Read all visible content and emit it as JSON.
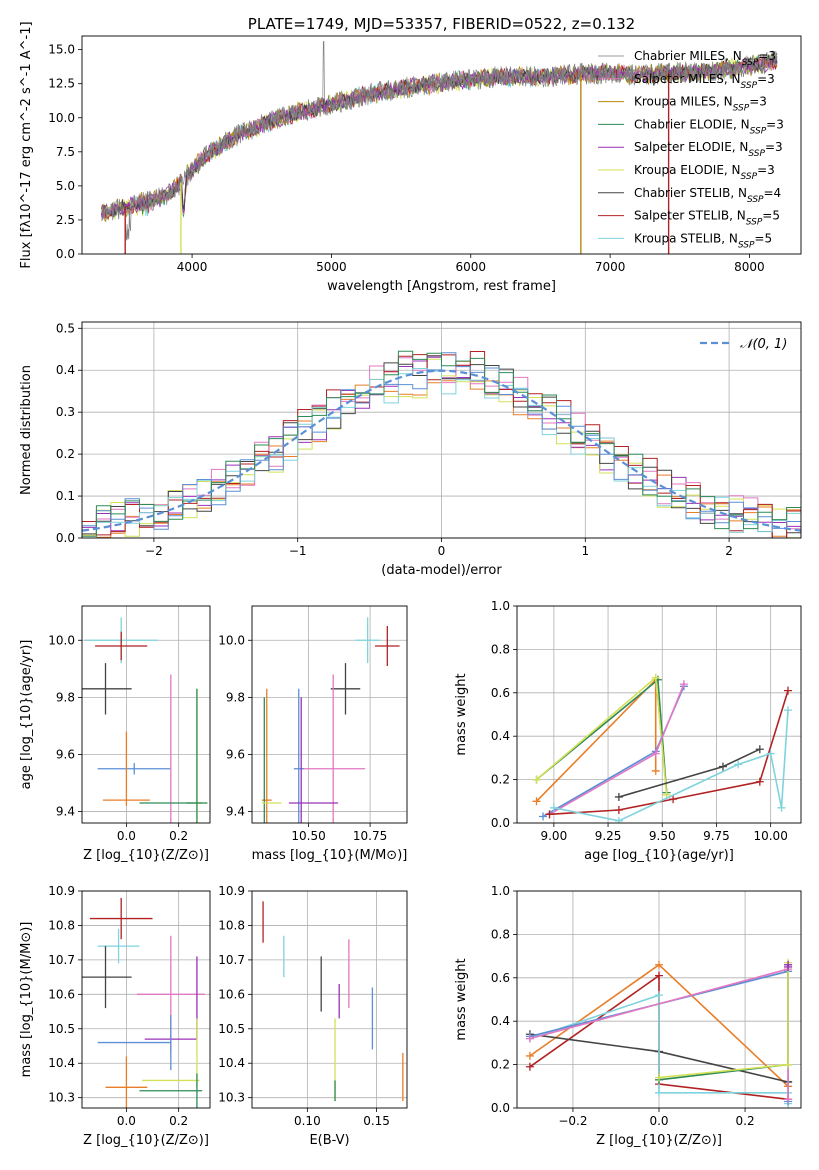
{
  "chart_data": [
    {
      "panel": "spectrum",
      "type": "line",
      "title": "PLATE=1749, MJD=53357, FIBERID=0522, z=0.132",
      "xlabel": "wavelength [Angstrom, rest frame]",
      "ylabel": "Flux [f$_{\\lambda}$10$^{-17}$ erg cm$^{-2}$ s$^{-1}$ A$^{-1}$]",
      "xlim": [
        3210,
        8370
      ],
      "ylim": [
        0,
        16
      ],
      "xticks": [
        4000,
        5000,
        6000,
        7000,
        8000
      ],
      "yticks": [
        0.0,
        2.5,
        5.0,
        7.5,
        10.0,
        12.5,
        15.0
      ],
      "legend_position": "upper right",
      "legend": [
        "Chabrier MILES, N_SSP=3",
        "Salpeter MILES, N_SSP=3",
        "Kroupa MILES, N_SSP=3",
        "Chabrier ELODIE, N_SSP=3",
        "Salpeter ELODIE, N_SSP=3",
        "Kroupa ELODIE, N_SSP=3",
        "Chabrier STELIB, N_SSP=4",
        "Salpeter STELIB, N_SSP=5",
        "Kroupa STELIB, N_SSP=5"
      ],
      "series_colors": [
        "#9b9b9b",
        "#e377c2",
        "#b8860b",
        "#2e8b57",
        "#9b30b8",
        "#d4e157",
        "#444444",
        "#b22222",
        "#7fd3dd"
      ],
      "continuum": {
        "x": [
          3350,
          3500,
          3600,
          3700,
          3800,
          3900,
          4000,
          4100,
          4300,
          4500,
          4700,
          5000,
          5300,
          5600,
          5900,
          6200,
          6500,
          6800,
          7000,
          7200,
          7400,
          7700,
          8000,
          8200
        ],
        "y": [
          3.0,
          3.4,
          3.6,
          3.9,
          4.2,
          5.0,
          6.2,
          7.2,
          8.6,
          9.5,
          10.2,
          11.0,
          11.8,
          12.3,
          12.7,
          13.0,
          13.0,
          13.2,
          13.3,
          13.1,
          13.3,
          13.4,
          13.8,
          14.2
        ]
      },
      "model_gaps": [
        {
          "x": 3520
        },
        {
          "x": 3920
        },
        {
          "x": 6790
        },
        {
          "x": 7420
        }
      ]
    },
    {
      "panel": "residuals",
      "type": "histogram",
      "xlabel": "(data-model)/error",
      "ylabel": "Normed distribution",
      "xlim": [
        -2.5,
        2.5
      ],
      "ylim": [
        0,
        0.515
      ],
      "xticks": [
        -2,
        -1,
        0,
        1,
        2
      ],
      "yticks": [
        0.0,
        0.1,
        0.2,
        0.3,
        0.4,
        0.5
      ],
      "grid": true,
      "legend_position": "upper right",
      "reference": {
        "name": "$\\mathcal{N}(0,1)$",
        "color": "#5b8fd6",
        "style": "dashed"
      },
      "series_colors": [
        "#e87e28",
        "#9b30b8",
        "#e377c2",
        "#d4e157",
        "#444444",
        "#b22222",
        "#7fd3dd",
        "#5b8fd6",
        "#2e8b57"
      ]
    },
    {
      "panel": "age-vs-Z",
      "type": "errorbar",
      "xlabel": "Z [log$_{10}$(Z/Z$_\\odot$)]",
      "ylabel": "age  [log$_{10}$(age/yr)]",
      "xlim": [
        -0.17,
        0.32
      ],
      "ylim": [
        9.36,
        10.12
      ],
      "xticks": [
        0.0,
        0.2
      ],
      "yticks": [
        9.4,
        9.6,
        9.8,
        10.0
      ],
      "grid": true,
      "points": [
        {
          "x": -0.02,
          "y": 10.0,
          "xerr": 0.14,
          "yerr": 0.08,
          "color": "#7fd3dd"
        },
        {
          "x": -0.02,
          "y": 9.98,
          "xerr": 0.1,
          "yerr": 0.05,
          "color": "#b22222"
        },
        {
          "x": -0.08,
          "y": 9.83,
          "xerr": 0.1,
          "yerr": 0.09,
          "color": "#444444"
        },
        {
          "x": 0.03,
          "y": 9.55,
          "xerr": 0.14,
          "yerr": 0.02,
          "color": "#5b8fd6"
        },
        {
          "x": 0.17,
          "y": 9.55,
          "xerr": 0.0,
          "yerr": 0.33,
          "color": "#e377c2"
        },
        {
          "x": 0.0,
          "y": 9.55,
          "xerr": 0.0,
          "yerr": 0.13,
          "color": "#e87e28"
        },
        {
          "x": 0.0,
          "y": 9.44,
          "xerr": 0.09,
          "yerr": 0.0,
          "color": "#e87e28"
        },
        {
          "x": 0.27,
          "y": 9.43,
          "xerr": 0.04,
          "yerr": 0.4,
          "color": "#d4e157"
        },
        {
          "x": 0.27,
          "y": 9.43,
          "xerr": 0.04,
          "yerr": 0.4,
          "color": "#2e8b57"
        },
        {
          "x": 0.17,
          "y": 9.43,
          "xerr": 0.12,
          "yerr": 0.0,
          "color": "#2e8b57"
        }
      ]
    },
    {
      "panel": "age-vs-mass",
      "type": "errorbar",
      "xlabel": "mass [log$_{10}$(M/M$_\\odot$)]",
      "ylabel": "",
      "xlim": [
        10.27,
        10.9
      ],
      "ylim": [
        9.36,
        10.12
      ],
      "xticks": [
        10.5,
        10.75
      ],
      "yticks": [
        9.4,
        9.6,
        9.8,
        10.0
      ],
      "grid": true,
      "points": [
        {
          "x": 10.74,
          "y": 10.0,
          "xerr": 0.05,
          "yerr": 0.08,
          "color": "#7fd3dd"
        },
        {
          "x": 10.82,
          "y": 9.98,
          "xerr": 0.05,
          "yerr": 0.07,
          "color": "#b22222"
        },
        {
          "x": 10.65,
          "y": 9.83,
          "xerr": 0.06,
          "yerr": 0.09,
          "color": "#444444"
        },
        {
          "x": 10.6,
          "y": 9.55,
          "xerr": 0.13,
          "yerr": 0.0,
          "color": "#e377c2"
        },
        {
          "x": 10.6,
          "y": 9.55,
          "xerr": 0.0,
          "yerr": 0.33,
          "color": "#e377c2"
        },
        {
          "x": 10.46,
          "y": 9.55,
          "xerr": 0.02,
          "yerr": 0.28,
          "color": "#5b8fd6"
        },
        {
          "x": 10.47,
          "y": 9.55,
          "xerr": 0.0,
          "yerr": 0.25,
          "color": "#9b30b8"
        },
        {
          "x": 10.52,
          "y": 9.43,
          "xerr": 0.1,
          "yerr": 0.0,
          "color": "#9b30b8"
        },
        {
          "x": 10.33,
          "y": 9.44,
          "xerr": 0.02,
          "yerr": 0.39,
          "color": "#e87e28"
        },
        {
          "x": 10.32,
          "y": 9.44,
          "xerr": 0.0,
          "yerr": 0.36,
          "color": "#2e8b57"
        },
        {
          "x": 10.35,
          "y": 9.43,
          "xerr": 0.04,
          "yerr": 0.0,
          "color": "#d4e157"
        }
      ]
    },
    {
      "panel": "mass-weight-vs-age",
      "type": "line",
      "xlabel": "age  [log$_{10}$(age/yr)]",
      "ylabel": "mass weight",
      "xlim": [
        8.83,
        10.14
      ],
      "ylim": [
        0,
        1
      ],
      "xticks": [
        9.0,
        9.25,
        9.5,
        9.75,
        10.0
      ],
      "yticks": [
        0.0,
        0.2,
        0.4,
        0.6,
        0.8,
        1.0
      ],
      "grid": true,
      "series": [
        {
          "color": "#e87e28",
          "x": [
            8.92,
            9.47,
            9.47
          ],
          "y": [
            0.1,
            0.66,
            0.24
          ]
        },
        {
          "color": "#2e8b57",
          "x": [
            8.92,
            9.48,
            9.52
          ],
          "y": [
            0.2,
            0.66,
            0.14
          ]
        },
        {
          "color": "#d4e157",
          "x": [
            8.92,
            9.47,
            9.52
          ],
          "y": [
            0.2,
            0.67,
            0.13
          ]
        },
        {
          "color": "#5b8fd6",
          "x": [
            8.95,
            9.47,
            9.6
          ],
          "y": [
            0.03,
            0.33,
            0.63
          ]
        },
        {
          "color": "#e377c2",
          "x": [
            8.98,
            9.47,
            9.6
          ],
          "y": [
            0.04,
            0.32,
            0.64
          ]
        },
        {
          "color": "#444444",
          "x": [
            9.3,
            9.78,
            9.95
          ],
          "y": [
            0.12,
            0.26,
            0.34
          ]
        },
        {
          "color": "#b22222",
          "x": [
            8.98,
            9.3,
            9.55,
            9.95,
            10.08
          ],
          "y": [
            0.04,
            0.06,
            0.11,
            0.19,
            0.61
          ]
        },
        {
          "color": "#7fd3dd",
          "x": [
            9.0,
            9.3,
            9.85,
            10.0,
            10.05,
            10.08
          ],
          "y": [
            0.07,
            0.01,
            0.27,
            0.32,
            0.07,
            0.52
          ]
        }
      ]
    },
    {
      "panel": "mass-vs-Z",
      "type": "errorbar",
      "xlabel": "Z [log$_{10}$(Z/Z$_\\odot$)]",
      "ylabel": "mass [log$_{10}$(M/M$_\\odot$)]",
      "xlim": [
        -0.17,
        0.32
      ],
      "ylim": [
        10.27,
        10.9
      ],
      "xticks": [
        0.0,
        0.2
      ],
      "yticks": [
        10.3,
        10.4,
        10.5,
        10.6,
        10.7,
        10.8,
        10.9
      ],
      "grid": true,
      "points": [
        {
          "x": -0.02,
          "y": 10.82,
          "xerr": 0.12,
          "yerr": 0.06,
          "color": "#b22222"
        },
        {
          "x": -0.03,
          "y": 10.74,
          "xerr": 0.08,
          "yerr": 0.05,
          "color": "#7fd3dd"
        },
        {
          "x": -0.08,
          "y": 10.65,
          "xerr": 0.1,
          "yerr": 0.09,
          "color": "#444444"
        },
        {
          "x": 0.17,
          "y": 10.6,
          "xerr": 0.13,
          "yerr": 0.17,
          "color": "#e377c2"
        },
        {
          "x": 0.27,
          "y": 10.59,
          "xerr": 0.0,
          "yerr": 0.12,
          "color": "#9b30b8"
        },
        {
          "x": 0.17,
          "y": 10.47,
          "xerr": 0.1,
          "yerr": 0.0,
          "color": "#9b30b8"
        },
        {
          "x": 0.03,
          "y": 10.46,
          "xerr": 0.14,
          "yerr": 0.0,
          "color": "#5b8fd6"
        },
        {
          "x": 0.17,
          "y": 10.46,
          "xerr": 0.0,
          "yerr": 0.08,
          "color": "#5b8fd6"
        },
        {
          "x": 0.27,
          "y": 10.43,
          "xerr": 0.0,
          "yerr": 0.1,
          "color": "#d4e157"
        },
        {
          "x": 0.0,
          "y": 10.33,
          "xerr": 0.08,
          "yerr": 0.09,
          "color": "#e87e28"
        },
        {
          "x": 0.17,
          "y": 10.35,
          "xerr": 0.11,
          "yerr": 0.0,
          "color": "#d4e157"
        },
        {
          "x": 0.17,
          "y": 10.32,
          "xerr": 0.12,
          "yerr": 0.0,
          "color": "#2e8b57"
        },
        {
          "x": 0.27,
          "y": 10.32,
          "xerr": 0.0,
          "yerr": 0.05,
          "color": "#2e8b57"
        }
      ]
    },
    {
      "panel": "mass-vs-EBV",
      "type": "errorbar",
      "xlabel": "E(B-V)",
      "ylabel": "",
      "xlim": [
        0.06,
        0.172
      ],
      "ylim": [
        10.27,
        10.9
      ],
      "xticks": [
        0.1,
        0.15
      ],
      "yticks": [
        10.3,
        10.4,
        10.5,
        10.6,
        10.7,
        10.8,
        10.9
      ],
      "grid": true,
      "points": [
        {
          "x": 0.068,
          "y": 10.81,
          "xerr": 0.0,
          "yerr": 0.06,
          "color": "#b22222"
        },
        {
          "x": 0.083,
          "y": 10.71,
          "xerr": 0.0,
          "yerr": 0.06,
          "color": "#7fd3dd"
        },
        {
          "x": 0.11,
          "y": 10.63,
          "xerr": 0.0,
          "yerr": 0.08,
          "color": "#444444"
        },
        {
          "x": 0.13,
          "y": 10.66,
          "xerr": 0.0,
          "yerr": 0.1,
          "color": "#e377c2"
        },
        {
          "x": 0.123,
          "y": 10.58,
          "xerr": 0.0,
          "yerr": 0.05,
          "color": "#9b30b8"
        },
        {
          "x": 0.147,
          "y": 10.53,
          "xerr": 0.0,
          "yerr": 0.09,
          "color": "#5b8fd6"
        },
        {
          "x": 0.12,
          "y": 10.41,
          "xerr": 0.0,
          "yerr": 0.12,
          "color": "#d4e157"
        },
        {
          "x": 0.12,
          "y": 10.32,
          "xerr": 0.0,
          "yerr": 0.03,
          "color": "#2e8b57"
        },
        {
          "x": 0.169,
          "y": 10.36,
          "xerr": 0.0,
          "yerr": 0.07,
          "color": "#e87e28"
        }
      ]
    },
    {
      "panel": "mass-weight-vs-Z",
      "type": "line",
      "xlabel": "Z [log$_{10}$(Z/Z$_\\odot$)]",
      "ylabel": "mass weight",
      "xlim": [
        -0.33,
        0.33
      ],
      "ylim": [
        0,
        1
      ],
      "xticks": [
        -0.2,
        0.0,
        0.2
      ],
      "yticks": [
        0.0,
        0.2,
        0.4,
        0.6,
        0.8,
        1.0
      ],
      "grid": true,
      "series": [
        {
          "color": "#e87e28",
          "x": [
            -0.3,
            0.0,
            0.3
          ],
          "y": [
            0.24,
            0.66,
            0.1
          ]
        },
        {
          "color": "#b22222",
          "x": [
            -0.3,
            0.0,
            0.0,
            0.3
          ],
          "y": [
            0.19,
            0.61,
            0.11,
            0.04
          ]
        },
        {
          "color": "#444444",
          "x": [
            -0.3,
            0.0,
            0.3,
            0.3
          ],
          "y": [
            0.34,
            0.26,
            0.12,
            0.12
          ]
        },
        {
          "color": "#7fd3dd",
          "x": [
            -0.3,
            0.0,
            0.0,
            0.3,
            0.3
          ],
          "y": [
            0.32,
            0.52,
            0.07,
            0.07,
            0.02
          ]
        },
        {
          "color": "#5b8fd6",
          "x": [
            -0.3,
            0.3,
            0.3
          ],
          "y": [
            0.33,
            0.63,
            0.03
          ]
        },
        {
          "color": "#e377c2",
          "x": [
            -0.3,
            0.3,
            0.3
          ],
          "y": [
            0.32,
            0.64,
            0.04
          ]
        },
        {
          "color": "#2e8b57",
          "x": [
            0.0,
            0.3,
            0.3
          ],
          "y": [
            0.13,
            0.2,
            0.66
          ]
        },
        {
          "color": "#d4e157",
          "x": [
            0.0,
            0.3,
            0.3
          ],
          "y": [
            0.14,
            0.2,
            0.67
          ]
        },
        {
          "color": "#9b30b8",
          "x": [
            0.3,
            0.3
          ],
          "y": [
            0.66,
            0.65
          ]
        }
      ]
    }
  ]
}
